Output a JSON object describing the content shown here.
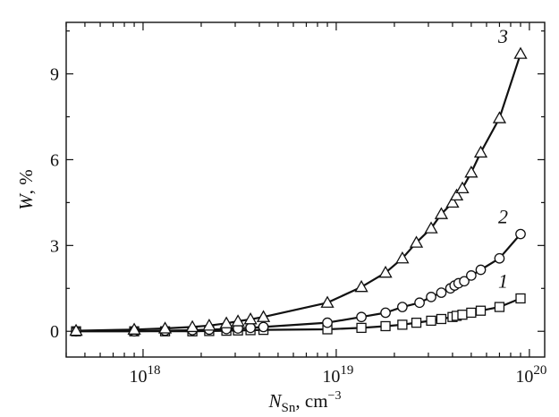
{
  "chart_data": {
    "type": "line",
    "xscale": "log",
    "xlim": [
      4e+17,
      1.2e+20
    ],
    "ylim": [
      -0.9,
      10.8
    ],
    "xlabel": {
      "main": "N",
      "sub": "Sn",
      "unit": ", cm",
      "sup": "−3"
    },
    "ylabel": {
      "main": "W",
      "unit": ", %"
    },
    "x_ticks": [
      {
        "value": 1e+18,
        "base": "10",
        "exp": "18"
      },
      {
        "value": 1e+19,
        "base": "10",
        "exp": "19"
      },
      {
        "value": 1e+20,
        "base": "10",
        "exp": "20"
      }
    ],
    "y_ticks": [
      {
        "value": 0,
        "label": "0"
      },
      {
        "value": 3,
        "label": "3"
      },
      {
        "value": 6,
        "label": "6"
      },
      {
        "value": 9,
        "label": "9"
      }
    ],
    "series": [
      {
        "label": "1",
        "marker": "square",
        "x": [
          4.5e+17,
          9e+17,
          1.3e+18,
          1.8e+18,
          2.2e+18,
          2.7e+18,
          3.1e+18,
          3.6e+18,
          4.2e+18,
          9e+18,
          1.35e+19,
          1.8e+19,
          2.2e+19,
          2.6e+19,
          3.1e+19,
          3.5e+19,
          4e+19,
          4.2e+19,
          4.5e+19,
          5e+19,
          5.6e+19,
          7e+19,
          9e+19
        ],
        "y": [
          0.0,
          0.0,
          0.0,
          0.0,
          0.01,
          0.02,
          0.03,
          0.04,
          0.05,
          0.07,
          0.12,
          0.18,
          0.23,
          0.3,
          0.37,
          0.43,
          0.5,
          0.54,
          0.58,
          0.65,
          0.72,
          0.85,
          1.15
        ]
      },
      {
        "label": "2",
        "marker": "circle",
        "x": [
          4.5e+17,
          9e+17,
          1.3e+18,
          1.8e+18,
          2.2e+18,
          2.7e+18,
          3.1e+18,
          3.6e+18,
          4.2e+18,
          9e+18,
          1.35e+19,
          1.8e+19,
          2.2e+19,
          2.7e+19,
          3.1e+19,
          3.5e+19,
          3.9e+19,
          4.1e+19,
          4.3e+19,
          4.6e+19,
          5e+19,
          5.6e+19,
          7e+19,
          9e+19
        ],
        "y": [
          0.0,
          0.0,
          0.02,
          0.04,
          0.06,
          0.08,
          0.1,
          0.12,
          0.15,
          0.3,
          0.5,
          0.65,
          0.85,
          1.0,
          1.2,
          1.35,
          1.5,
          1.6,
          1.68,
          1.75,
          1.95,
          2.15,
          2.55,
          3.4
        ]
      },
      {
        "label": "3",
        "marker": "triangle",
        "x": [
          4.5e+17,
          9e+17,
          1.3e+18,
          1.8e+18,
          2.2e+18,
          2.7e+18,
          3.1e+18,
          3.6e+18,
          4.2e+18,
          9e+18,
          1.35e+19,
          1.8e+19,
          2.2e+19,
          2.6e+19,
          3.1e+19,
          3.5e+19,
          4e+19,
          4.2e+19,
          4.5e+19,
          5e+19,
          5.6e+19,
          7e+19,
          9e+19
        ],
        "y": [
          0.02,
          0.06,
          0.1,
          0.15,
          0.2,
          0.28,
          0.35,
          0.42,
          0.5,
          1.0,
          1.55,
          2.05,
          2.55,
          3.1,
          3.6,
          4.1,
          4.5,
          4.75,
          5.0,
          5.55,
          6.25,
          7.45,
          9.7
        ]
      }
    ]
  }
}
